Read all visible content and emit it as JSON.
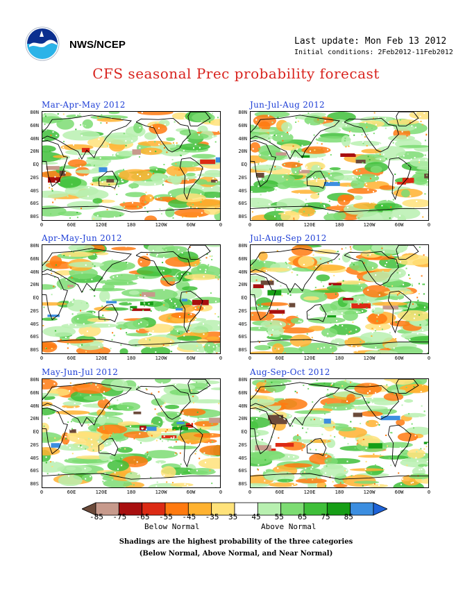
{
  "header": {
    "org": "NWS/NCEP",
    "last_update": "Last update: Mon Feb 13 2012",
    "initial_conditions": "Initial conditions: 2Feb2012-11Feb2012",
    "title": "CFS seasonal Prec probability forecast"
  },
  "panels": [
    {
      "title": "Mar-Apr-May 2012"
    },
    {
      "title": "Jun-Jul-Aug 2012"
    },
    {
      "title": "Apr-May-Jun 2012"
    },
    {
      "title": "Jul-Aug-Sep 2012"
    },
    {
      "title": "May-Jun-Jul 2012"
    },
    {
      "title": "Aug-Sep-Oct 2012"
    }
  ],
  "axes": {
    "lat_labels": [
      "80N",
      "60N",
      "40N",
      "20N",
      "EQ",
      "20S",
      "40S",
      "60S",
      "80S"
    ],
    "lon_labels": [
      "0",
      "60E",
      "120E",
      "180",
      "120W",
      "60W",
      "0"
    ]
  },
  "legend": {
    "ticks": [
      "-85",
      "-75",
      "-65",
      "-55",
      "-45",
      "-35",
      "35",
      "45",
      "55",
      "65",
      "75",
      "85"
    ],
    "below_label": "Below Normal",
    "above_label": "Above Normal",
    "colors": [
      "#6b4a3a",
      "#c79a8c",
      "#a80f0f",
      "#dc2a14",
      "#ff7a10",
      "#ffb230",
      "#ffe27a",
      "#ffffff",
      "#b8f0b0",
      "#7ddc73",
      "#3fbf3a",
      "#169e16",
      "#3c8ee0",
      "#1e63d8"
    ]
  },
  "notes": {
    "line1": "Shadings are the highest probability of the three categories",
    "line2": "(Below Normal, Above Normal, and Near Normal)"
  }
}
